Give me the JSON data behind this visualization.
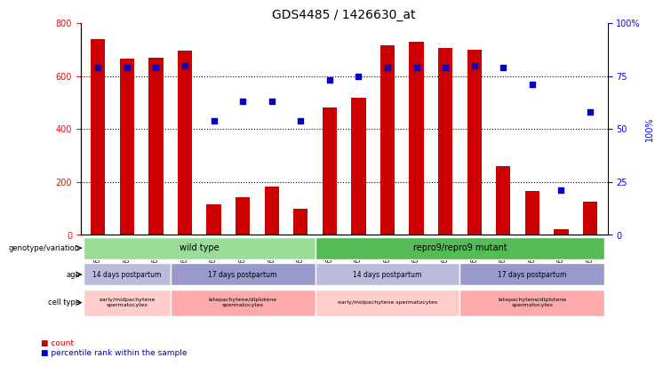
{
  "title": "GDS4485 / 1426630_at",
  "samples": [
    "GSM692969",
    "GSM692970",
    "GSM692971",
    "GSM692977",
    "GSM692978",
    "GSM692979",
    "GSM692980",
    "GSM692981",
    "GSM692964",
    "GSM692965",
    "GSM692966",
    "GSM692967",
    "GSM692968",
    "GSM692972",
    "GSM692973",
    "GSM692974",
    "GSM692975",
    "GSM692976"
  ],
  "counts": [
    740,
    665,
    670,
    698,
    115,
    142,
    182,
    100,
    482,
    520,
    718,
    730,
    706,
    700,
    260,
    165,
    20,
    127
  ],
  "percentiles": [
    79,
    79,
    79,
    80,
    54,
    63,
    63,
    54,
    73,
    75,
    79,
    79,
    79,
    80,
    79,
    71,
    21,
    58
  ],
  "bar_color": "#cc0000",
  "dot_color": "#0000cc",
  "ylim_left": [
    0,
    800
  ],
  "ylim_right": [
    0,
    100
  ],
  "yticks_left": [
    0,
    200,
    400,
    600,
    800
  ],
  "yticks_right": [
    0,
    25,
    50,
    75,
    100
  ],
  "grid_color": "black",
  "bg_color": "#e8e8e8",
  "genotype_row": {
    "label": "genotype/variation",
    "groups": [
      {
        "text": "wild type",
        "start": 0,
        "end": 8,
        "color": "#99dd99"
      },
      {
        "text": "repro9/repro9 mutant",
        "start": 8,
        "end": 18,
        "color": "#55bb55"
      }
    ]
  },
  "age_row": {
    "label": "age",
    "groups": [
      {
        "text": "14 days postpartum",
        "start": 0,
        "end": 3,
        "color": "#bbbbdd"
      },
      {
        "text": "17 days postpartum",
        "start": 3,
        "end": 8,
        "color": "#9999cc"
      },
      {
        "text": "14 days postpartum",
        "start": 8,
        "end": 13,
        "color": "#bbbbdd"
      },
      {
        "text": "17 days postpartum",
        "start": 13,
        "end": 18,
        "color": "#9999cc"
      }
    ]
  },
  "celltype_row": {
    "label": "cell type",
    "groups": [
      {
        "text": "early/midpachytene\nspermatocytes",
        "start": 0,
        "end": 3,
        "color": "#ffcccc"
      },
      {
        "text": "latepachytene/diplotene\nspermatocytes",
        "start": 3,
        "end": 8,
        "color": "#ffaaaa"
      },
      {
        "text": "early/midpachytene spermatocytes",
        "start": 8,
        "end": 13,
        "color": "#ffcccc"
      },
      {
        "text": "latepachytene/diplotene\nspermatocytes",
        "start": 13,
        "end": 18,
        "color": "#ffaaaa"
      }
    ]
  },
  "legend": [
    {
      "color": "#cc0000",
      "label": "count"
    },
    {
      "color": "#0000cc",
      "label": "percentile rank within the sample"
    }
  ]
}
